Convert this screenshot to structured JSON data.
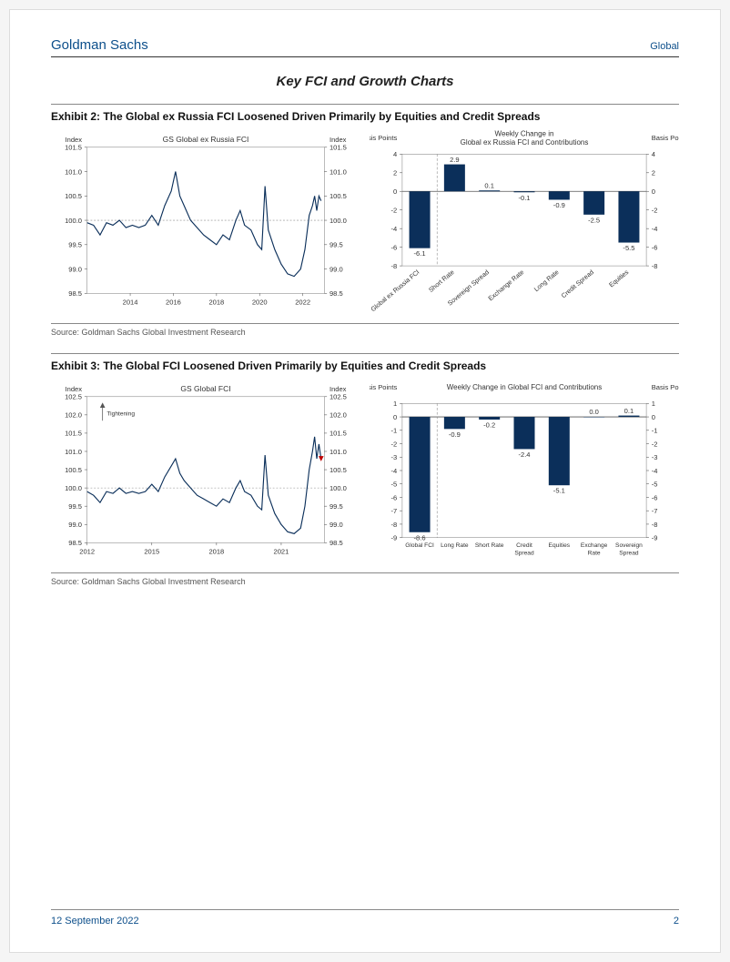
{
  "header": {
    "brand": "Goldman Sachs",
    "region": "Global"
  },
  "section_title": "Key FCI and Growth Charts",
  "exhibit2": {
    "title": "Exhibit 2: The Global ex Russia FCI Loosened Driven Primarily by Equities and Credit Spreads",
    "source": "Source: Goldman Sachs Global Investment Research",
    "line_chart": {
      "type": "line",
      "title": "GS Global ex Russia FCI",
      "y_label_left": "Index",
      "y_label_right": "Index",
      "ylim": [
        98.5,
        101.5
      ],
      "ytick_step": 0.5,
      "ref_line": 100.0,
      "x_labels": [
        "2014",
        "2016",
        "2018",
        "2020",
        "2022"
      ],
      "x_range": [
        2012,
        2023
      ],
      "line_color": "#0b2f5a",
      "grid_color": "#d0d0d0",
      "background_color": "#ffffff",
      "series": [
        [
          2012.0,
          99.95
        ],
        [
          2012.3,
          99.9
        ],
        [
          2012.6,
          99.7
        ],
        [
          2012.9,
          99.95
        ],
        [
          2013.2,
          99.9
        ],
        [
          2013.5,
          100.0
        ],
        [
          2013.8,
          99.85
        ],
        [
          2014.1,
          99.9
        ],
        [
          2014.4,
          99.85
        ],
        [
          2014.7,
          99.9
        ],
        [
          2015.0,
          100.1
        ],
        [
          2015.3,
          99.9
        ],
        [
          2015.6,
          100.3
        ],
        [
          2015.9,
          100.6
        ],
        [
          2016.1,
          101.0
        ],
        [
          2016.3,
          100.5
        ],
        [
          2016.5,
          100.3
        ],
        [
          2016.8,
          100.0
        ],
        [
          2017.1,
          99.85
        ],
        [
          2017.4,
          99.7
        ],
        [
          2017.7,
          99.6
        ],
        [
          2018.0,
          99.5
        ],
        [
          2018.3,
          99.7
        ],
        [
          2018.6,
          99.6
        ],
        [
          2018.9,
          100.0
        ],
        [
          2019.1,
          100.2
        ],
        [
          2019.3,
          99.9
        ],
        [
          2019.6,
          99.8
        ],
        [
          2019.9,
          99.5
        ],
        [
          2020.1,
          99.4
        ],
        [
          2020.25,
          100.7
        ],
        [
          2020.4,
          99.8
        ],
        [
          2020.7,
          99.4
        ],
        [
          2021.0,
          99.1
        ],
        [
          2021.3,
          98.9
        ],
        [
          2021.6,
          98.85
        ],
        [
          2021.9,
          99.0
        ],
        [
          2022.1,
          99.4
        ],
        [
          2022.3,
          100.1
        ],
        [
          2022.45,
          100.3
        ],
        [
          2022.55,
          100.5
        ],
        [
          2022.65,
          100.2
        ],
        [
          2022.75,
          100.5
        ],
        [
          2022.85,
          100.4
        ]
      ]
    },
    "bar_chart": {
      "type": "bar",
      "title": "Weekly Change in\nGlobal ex Russia FCI and Contributions",
      "y_label_left": "Basis Points",
      "y_label_right": "Basis Points",
      "ylim": [
        -8,
        4
      ],
      "ytick_step": 2,
      "bar_color": "#0b2f5a",
      "grid_color": "#d0d0d0",
      "background_color": "#ffffff",
      "categories": [
        "Global ex Russia FCI",
        "Short Rate",
        "Sovereign Spread",
        "Exchange Rate",
        "Long Rate",
        "Credit Spread",
        "Equities"
      ],
      "values": [
        -6.1,
        2.9,
        0.1,
        -0.1,
        -0.9,
        -2.5,
        -5.5
      ],
      "rotated_labels": true,
      "separator_after_index": 0
    }
  },
  "exhibit3": {
    "title": "Exhibit 3: The Global FCI Loosened Driven Primarily by Equities and Credit Spreads",
    "source": "Source: Goldman Sachs Global Investment Research",
    "line_chart": {
      "type": "line",
      "title": "GS Global FCI",
      "y_label_left": "Index",
      "y_label_right": "Index",
      "ylim": [
        98.5,
        102.5
      ],
      "ytick_step": 0.5,
      "ref_line": 100.0,
      "x_labels": [
        "2012",
        "2015",
        "2018",
        "2021"
      ],
      "x_range": [
        2012,
        2023
      ],
      "line_color": "#0b2f5a",
      "grid_color": "#d0d0d0",
      "background_color": "#ffffff",
      "arrow_label": "Tightening",
      "last_point_marker_color": "#c00000",
      "series": [
        [
          2012.0,
          99.9
        ],
        [
          2012.3,
          99.8
        ],
        [
          2012.6,
          99.6
        ],
        [
          2012.9,
          99.9
        ],
        [
          2013.2,
          99.85
        ],
        [
          2013.5,
          100.0
        ],
        [
          2013.8,
          99.85
        ],
        [
          2014.1,
          99.9
        ],
        [
          2014.4,
          99.85
        ],
        [
          2014.7,
          99.9
        ],
        [
          2015.0,
          100.1
        ],
        [
          2015.3,
          99.9
        ],
        [
          2015.6,
          100.3
        ],
        [
          2015.9,
          100.6
        ],
        [
          2016.1,
          100.8
        ],
        [
          2016.3,
          100.4
        ],
        [
          2016.5,
          100.2
        ],
        [
          2016.8,
          100.0
        ],
        [
          2017.1,
          99.8
        ],
        [
          2017.4,
          99.7
        ],
        [
          2017.7,
          99.6
        ],
        [
          2018.0,
          99.5
        ],
        [
          2018.3,
          99.7
        ],
        [
          2018.6,
          99.6
        ],
        [
          2018.9,
          100.0
        ],
        [
          2019.1,
          100.2
        ],
        [
          2019.3,
          99.9
        ],
        [
          2019.6,
          99.8
        ],
        [
          2019.9,
          99.5
        ],
        [
          2020.1,
          99.4
        ],
        [
          2020.25,
          100.9
        ],
        [
          2020.4,
          99.8
        ],
        [
          2020.7,
          99.3
        ],
        [
          2021.0,
          99.0
        ],
        [
          2021.3,
          98.8
        ],
        [
          2021.6,
          98.75
        ],
        [
          2021.9,
          98.9
        ],
        [
          2022.1,
          99.5
        ],
        [
          2022.3,
          100.5
        ],
        [
          2022.45,
          101.0
        ],
        [
          2022.55,
          101.4
        ],
        [
          2022.65,
          100.8
        ],
        [
          2022.75,
          101.2
        ],
        [
          2022.85,
          100.8
        ]
      ]
    },
    "bar_chart": {
      "type": "bar",
      "title": "Weekly Change in Global FCI and Contributions",
      "y_label_left": "Basis Points",
      "y_label_right": "Basis Points",
      "ylim": [
        -9,
        1
      ],
      "ytick_step": 1,
      "bar_color": "#0b2f5a",
      "grid_color": "#d0d0d0",
      "background_color": "#ffffff",
      "categories": [
        "Global FCI",
        "Long Rate",
        "Short Rate",
        "Credit Spread",
        "Equities",
        "Exchange Rate",
        "Sovereign Spread"
      ],
      "values": [
        -8.6,
        -0.9,
        -0.2,
        -2.4,
        -5.1,
        0.0,
        0.1
      ],
      "rotated_labels": false,
      "separator_after_index": 0
    }
  },
  "footer": {
    "date": "12 September 2022",
    "page": "2"
  },
  "colors": {
    "brand_blue": "#0d4f8b",
    "chart_navy": "#0b2f5a",
    "text": "#333333"
  }
}
